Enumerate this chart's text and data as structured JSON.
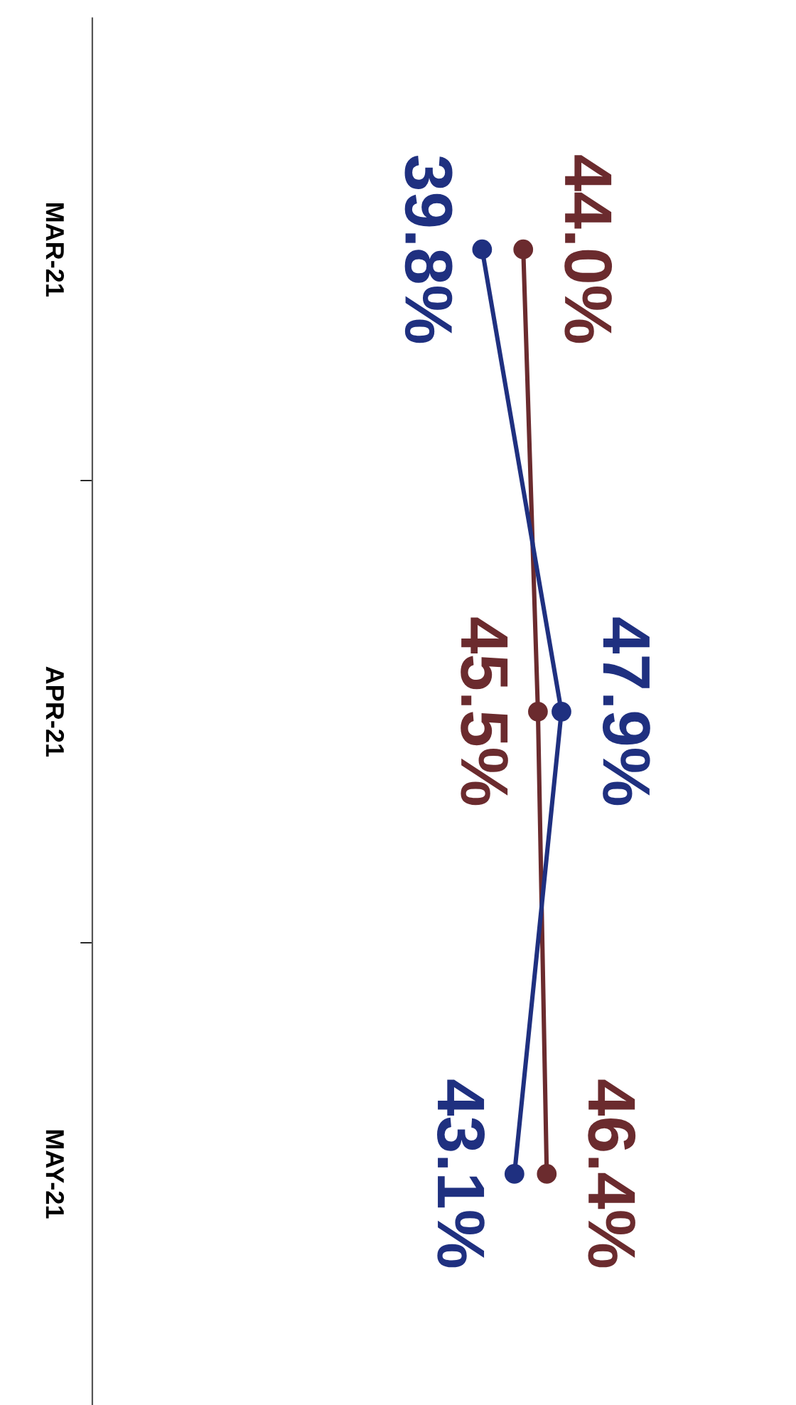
{
  "chart_data": {
    "type": "line",
    "orientation": "horizontal",
    "categories": [
      "MAR-21",
      "APR-21",
      "MAY-21"
    ],
    "series": [
      {
        "color": "#6b2b2e",
        "values": [
          44.0,
          45.5,
          46.4
        ],
        "value_labels": [
          "44.0%",
          "45.5%",
          "46.4%"
        ]
      },
      {
        "color": "#1f3080",
        "values": [
          39.8,
          47.9,
          43.1
        ],
        "value_labels": [
          "39.8%",
          "47.9%",
          "43.1%"
        ]
      }
    ],
    "marker": "circle",
    "line_style": "solid",
    "grid": false,
    "legend": false
  }
}
